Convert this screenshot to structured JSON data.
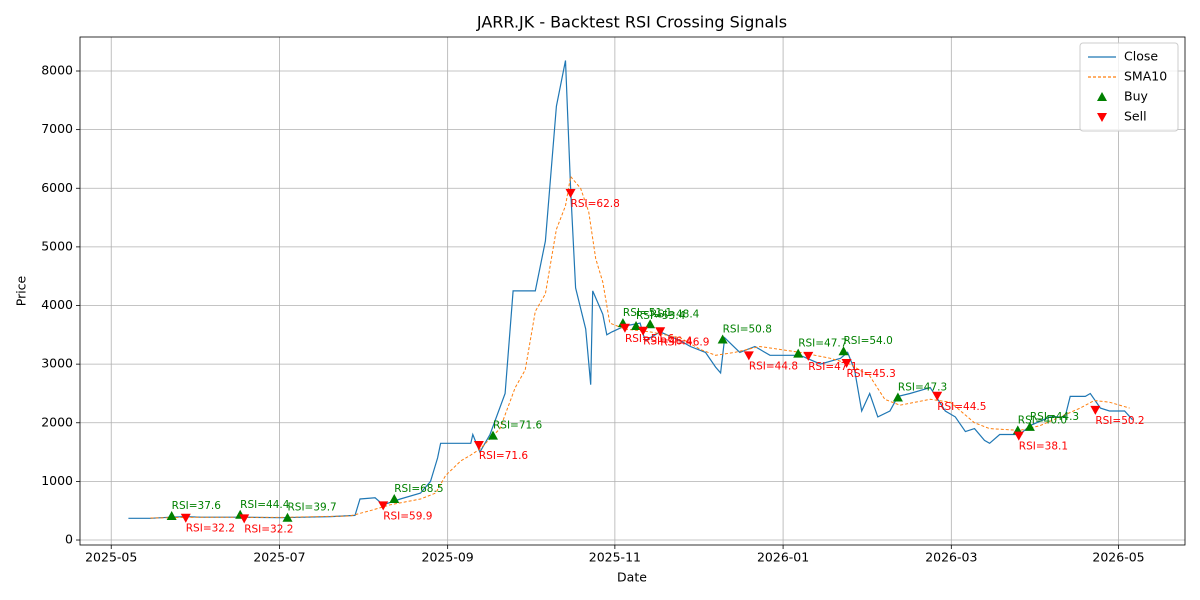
{
  "chart_data": {
    "type": "line",
    "title": "JARR.JK - Backtest RSI Crossing Signals",
    "xlabel": "Date",
    "ylabel": "Price",
    "xlim": [
      2025.302,
      2026.399
    ],
    "ylim": [
      -85,
      8580
    ],
    "xticks": [
      {
        "value": 2025.333,
        "label": "2025-05"
      },
      {
        "value": 2025.5,
        "label": "2025-07"
      },
      {
        "value": 2025.667,
        "label": "2025-09"
      },
      {
        "value": 2025.833,
        "label": "2025-11"
      },
      {
        "value": 2026.0,
        "label": "2026-01"
      },
      {
        "value": 2026.167,
        "label": "2026-03"
      },
      {
        "value": 2026.333,
        "label": "2026-05"
      }
    ],
    "yticks": [
      0,
      1000,
      2000,
      3000,
      4000,
      5000,
      6000,
      7000,
      8000
    ],
    "grid": true,
    "legend": "upper right",
    "series": [
      {
        "name": "Close",
        "type": "line",
        "color": "#1f77b4",
        "x": [
          2025.35,
          2025.372,
          2025.392,
          2025.407,
          2025.422,
          2025.461,
          2025.501,
          2025.551,
          2025.575,
          2025.58,
          2025.595,
          2025.603,
          2025.62,
          2025.64,
          2025.65,
          2025.657,
          2025.66,
          2025.69,
          2025.692,
          2025.699,
          2025.709,
          2025.724,
          2025.732,
          2025.754,
          2025.764,
          2025.775,
          2025.784,
          2025.789,
          2025.794,
          2025.804,
          2025.809,
          2025.811,
          2025.821,
          2025.825,
          2025.83,
          2025.843,
          2025.858,
          2025.863,
          2025.878,
          2025.898,
          2025.908,
          2025.923,
          2025.933,
          2025.938,
          2025.942,
          2025.957,
          2025.972,
          2025.987,
          2026.017,
          2026.037,
          2026.057,
          2026.064,
          2026.071,
          2026.078,
          2026.086,
          2026.094,
          2026.106,
          2026.114,
          2026.126,
          2026.146,
          2026.161,
          2026.171,
          2026.181,
          2026.19,
          2026.2,
          2026.205,
          2026.215,
          2026.235,
          2026.245,
          2026.265,
          2026.28,
          2026.285,
          2026.3,
          2026.305,
          2026.315,
          2026.324,
          2026.339,
          2026.347
        ],
        "values": [
          370,
          370,
          390,
          400,
          390,
          390,
          380,
          400,
          420,
          700,
          720,
          600,
          700,
          800,
          1000,
          1400,
          1650,
          1650,
          1800,
          1500,
          1800,
          2500,
          4250,
          4250,
          5100,
          7400,
          8180,
          6000,
          4300,
          3600,
          2650,
          4250,
          3850,
          3500,
          3550,
          3650,
          3700,
          3400,
          3550,
          3400,
          3300,
          3200,
          2950,
          2850,
          3450,
          3200,
          3300,
          3150,
          3150,
          3000,
          3100,
          3200,
          2900,
          2200,
          2500,
          2100,
          2200,
          2450,
          2500,
          2600,
          2200,
          2100,
          1850,
          1900,
          1700,
          1650,
          1800,
          1800,
          1950,
          2100,
          2100,
          2450,
          2450,
          2500,
          2250,
          2200,
          2200,
          2050
        ]
      },
      {
        "name": "SMA10",
        "type": "line",
        "color": "#ff7f0e",
        "dashed": true,
        "x": [
          2025.372,
          2025.422,
          2025.501,
          2025.57,
          2025.59,
          2025.61,
          2025.64,
          2025.655,
          2025.665,
          2025.68,
          2025.69,
          2025.699,
          2025.719,
          2025.734,
          2025.744,
          2025.754,
          2025.764,
          2025.775,
          2025.784,
          2025.789,
          2025.799,
          2025.807,
          2025.814,
          2025.821,
          2025.828,
          2025.843,
          2025.868,
          2025.898,
          2025.918,
          2025.933,
          2025.952,
          2025.977,
          2026.017,
          2026.047,
          2026.066,
          2026.086,
          2026.101,
          2026.116,
          2026.146,
          2026.166,
          2026.19,
          2026.205,
          2026.235,
          2026.255,
          2026.275,
          2026.295,
          2026.309,
          2026.324,
          2026.344
        ],
        "values": [
          375,
          390,
          385,
          410,
          500,
          600,
          700,
          800,
          1100,
          1350,
          1450,
          1550,
          1900,
          2600,
          2900,
          3900,
          4200,
          5300,
          5700,
          6200,
          6000,
          5600,
          4800,
          4400,
          3700,
          3600,
          3550,
          3450,
          3250,
          3150,
          3200,
          3300,
          3200,
          3100,
          3000,
          2800,
          2400,
          2300,
          2400,
          2350,
          2000,
          1900,
          1870,
          1950,
          2100,
          2250,
          2380,
          2350,
          2250
        ]
      },
      {
        "name": "Buy",
        "type": "scatter",
        "color": "#008000",
        "marker": "up",
        "x": [
          2025.393,
          2025.461,
          2025.508,
          2025.614,
          2025.712,
          2025.841,
          2025.854,
          2025.868,
          2025.94,
          2026.015,
          2026.06,
          2026.114,
          2026.233,
          2026.245
        ],
        "values": [
          410,
          430,
          380,
          700,
          1780,
          3700,
          3650,
          3680,
          3420,
          3180,
          3220,
          2430,
          1870,
          1930
        ],
        "labels": [
          "RSI=37.6",
          "RSI=44.4",
          "RSI=39.7",
          "RSI=68.5",
          "RSI=71.6",
          "RSI=51.1",
          "RSI=53.4",
          "RSI=48.4",
          "RSI=50.8",
          "RSI=47.7",
          "RSI=54.0",
          "RSI=47.3",
          "RSI=40.0",
          "RSI=44.3"
        ]
      },
      {
        "name": "Sell",
        "type": "scatter",
        "color": "#ff0000",
        "marker": "down",
        "x": [
          2025.407,
          2025.465,
          2025.603,
          2025.698,
          2025.789,
          2025.843,
          2025.861,
          2025.878,
          2025.966,
          2026.025,
          2026.063,
          2026.153,
          2026.234,
          2026.31
        ],
        "values": [
          380,
          370,
          590,
          1620,
          5920,
          3620,
          3570,
          3560,
          3150,
          3140,
          3020,
          2460,
          1780,
          2220
        ],
        "labels": [
          "RSI=32.2",
          "RSI=32.2",
          "RSI=59.9",
          "RSI=71.6",
          "RSI=62.8",
          "RSI=51.6",
          "RSI=46.4",
          "RSI=46.9",
          "RSI=44.8",
          "RSI=47.1",
          "RSI=45.3",
          "RSI=44.5",
          "RSI=38.1",
          "RSI=50.2"
        ]
      }
    ]
  }
}
